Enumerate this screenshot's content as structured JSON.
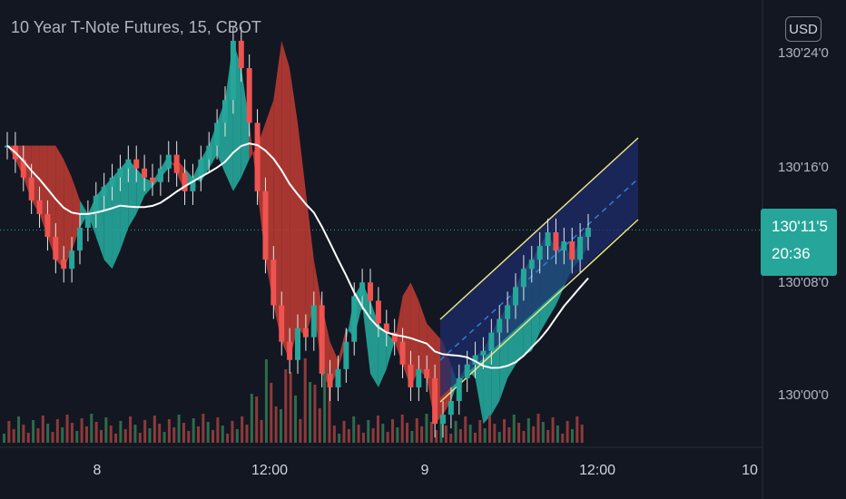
{
  "header": {
    "title": "10 Year T-Note Futures, 15, CBOT",
    "currency_button": "USD"
  },
  "chart_data": {
    "type": "candlestick",
    "title": "10 Year T-Note Futures, 15, CBOT",
    "price_axis": {
      "ticks": [
        "130'24'0",
        "130'16'0",
        "130'08'0",
        "130'00'0"
      ],
      "tick_values": [
        130.75,
        130.5,
        130.25,
        130.0
      ],
      "range": [
        129.82,
        130.95
      ]
    },
    "time_axis": {
      "ticks": [
        "8",
        "12:00",
        "9",
        "12:00",
        "10"
      ]
    },
    "last_price": {
      "label": "130'11'5",
      "value": 130.365,
      "countdown": "20:36"
    },
    "series": [
      {
        "name": "price",
        "kind": "candles",
        "points_per_tick": [
          130.55,
          130.52,
          130.48,
          130.43,
          130.4,
          130.35,
          130.3,
          130.28,
          130.32,
          130.37,
          130.4,
          130.44,
          130.46,
          130.48,
          130.5,
          130.52,
          130.5,
          130.48,
          130.47,
          130.5,
          130.53,
          130.49,
          130.45,
          130.48,
          130.52,
          130.55,
          130.6,
          130.65,
          130.78,
          130.72,
          130.6,
          130.45,
          130.3,
          130.2,
          130.12,
          130.08,
          130.15,
          130.13,
          130.2,
          130.05,
          130.02,
          130.06,
          130.12,
          130.22,
          130.25,
          130.21,
          130.16,
          130.14,
          130.12,
          130.07,
          130.02,
          130.06,
          130.04,
          129.94,
          129.96,
          129.99,
          130.04,
          130.07,
          130.09,
          130.1,
          130.14,
          130.17,
          130.2,
          130.24,
          130.28,
          130.3,
          130.33,
          130.36,
          130.32,
          130.34,
          130.3,
          130.35,
          130.37
        ]
      },
      {
        "name": "moving-average",
        "kind": "line"
      },
      {
        "name": "cloud",
        "kind": "band"
      },
      {
        "name": "regression-channel",
        "kind": "channel"
      },
      {
        "name": "volume",
        "kind": "histogram"
      }
    ],
    "grid": false
  },
  "colors": {
    "up": "#26a69a",
    "down": "#ef5350",
    "cloud_up": "#26a69a",
    "cloud_down": "#b83a33",
    "ma": "#ffffff",
    "channel_edge": "#e8e28a",
    "channel_fill": "#1d2c6a",
    "background": "#131722",
    "vol_up": "#2f6b4a",
    "vol_down": "#8e3a3a"
  }
}
